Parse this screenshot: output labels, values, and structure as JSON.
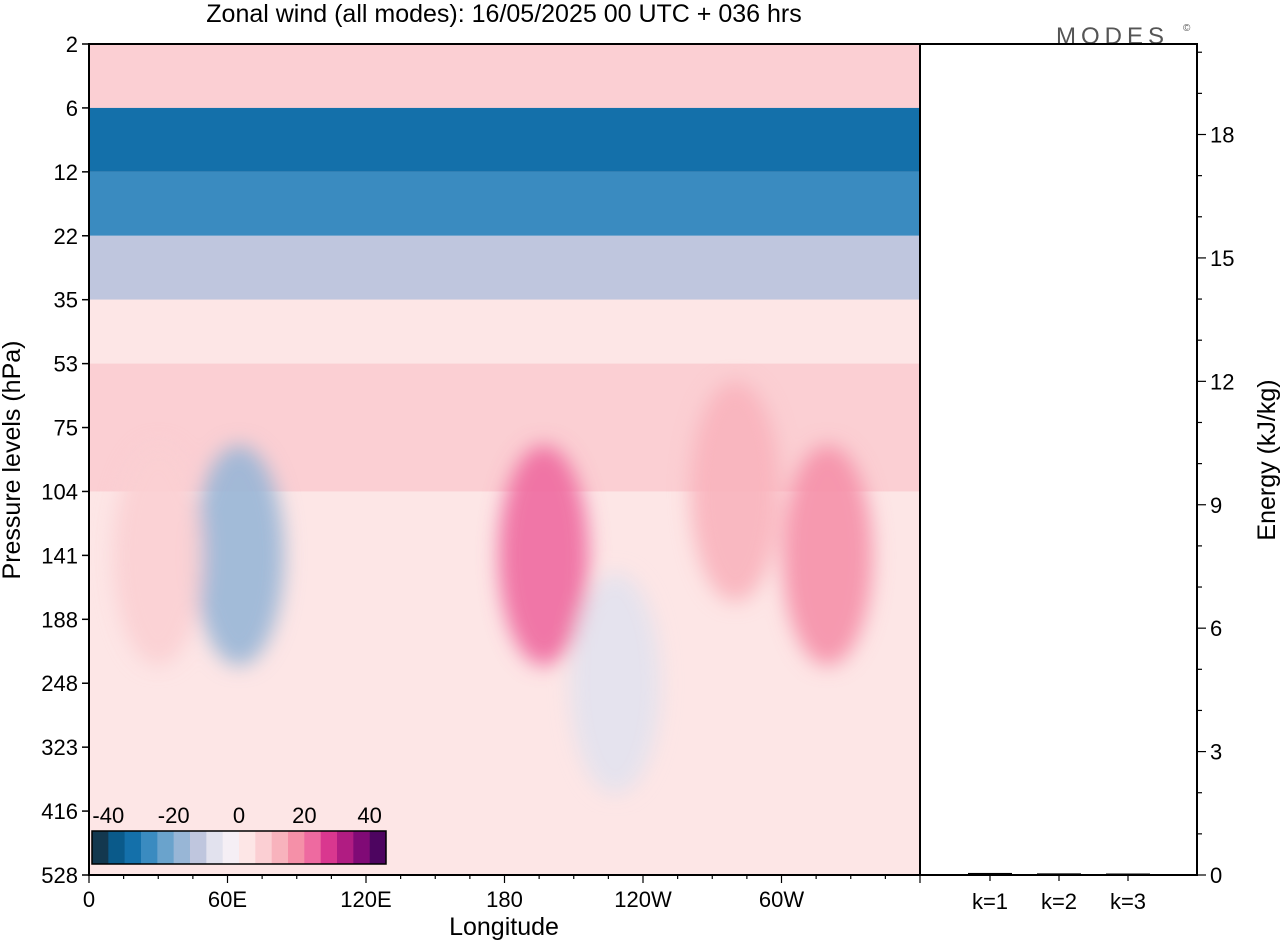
{
  "title": "Zonal wind (all modes):  16/05/2025  00 UTC  + 036 hrs",
  "brand": "MODES",
  "brand_mark": "©",
  "chart_data": [
    {
      "type": "heatmap",
      "title": "Zonal wind (all modes):  16/05/2025  00 UTC  + 036 hrs",
      "xlabel": "Longitude",
      "ylabel": "Pressure levels (hPa)",
      "x_ticks": [
        "0",
        "60E",
        "120E",
        "180",
        "120W",
        "60W"
      ],
      "x_tick_values": [
        0,
        60,
        120,
        180,
        240,
        300
      ],
      "x_range": [
        0,
        360
      ],
      "y_ticks": [
        "2",
        "6",
        "12",
        "22",
        "35",
        "53",
        "75",
        "104",
        "141",
        "188",
        "248",
        "323",
        "416",
        "528"
      ],
      "colorbar": {
        "tick_labels": [
          "-40",
          "-20",
          "0",
          "20",
          "40"
        ],
        "tick_values": [
          -40,
          -20,
          0,
          20,
          40
        ],
        "colors": [
          "#13384f",
          "#0a5a8a",
          "#1470aa",
          "#3a8bc0",
          "#6aa3cc",
          "#98b6d6",
          "#bfc6de",
          "#e2e2ee",
          "#f5eff5",
          "#fde6e6",
          "#fbcfd3",
          "#f8b3bd",
          "#f590a8",
          "#ee6aa0",
          "#d9378f",
          "#b01c82",
          "#800a76",
          "#4d0560"
        ]
      },
      "bands": [
        {
          "from_level": "2",
          "to_level": "6",
          "u": 8
        },
        {
          "from_level": "6",
          "to_level": "12",
          "u": -33
        },
        {
          "from_level": "12",
          "to_level": "22",
          "u": -26
        },
        {
          "from_level": "22",
          "to_level": "35",
          "u": -12
        },
        {
          "from_level": "35",
          "to_level": "53",
          "u": 2
        },
        {
          "from_level": "53",
          "to_level": "104",
          "u": 6
        },
        {
          "from_level": "104",
          "to_level": "416",
          "u": 3
        },
        {
          "from_level": "416",
          "to_level": "528",
          "u": 1
        }
      ],
      "features": [
        {
          "lon": 197,
          "level": "141",
          "u": 20
        },
        {
          "lon": 65,
          "level": "141",
          "u": -17
        },
        {
          "lon": 320,
          "level": "141",
          "u": 18
        },
        {
          "lon": 228,
          "level": "248",
          "u": -8
        },
        {
          "lon": 30,
          "level": "141",
          "u": 8
        },
        {
          "lon": 280,
          "level": "104",
          "u": 10
        }
      ]
    },
    {
      "type": "bar",
      "title": "",
      "ylabel": "Energy (kJ/kg)",
      "categories": [
        "k=1",
        "k=2",
        "k=3"
      ],
      "values": [
        0.05,
        0.04,
        0.03
      ],
      "ylim": [
        0,
        20.2
      ],
      "y_ticks": [
        0,
        3,
        6,
        9,
        12,
        15,
        18
      ],
      "y_tick_labels": [
        "0",
        "3",
        "6",
        "9",
        "12",
        "15",
        "18"
      ],
      "y_minor_step": 1
    }
  ]
}
